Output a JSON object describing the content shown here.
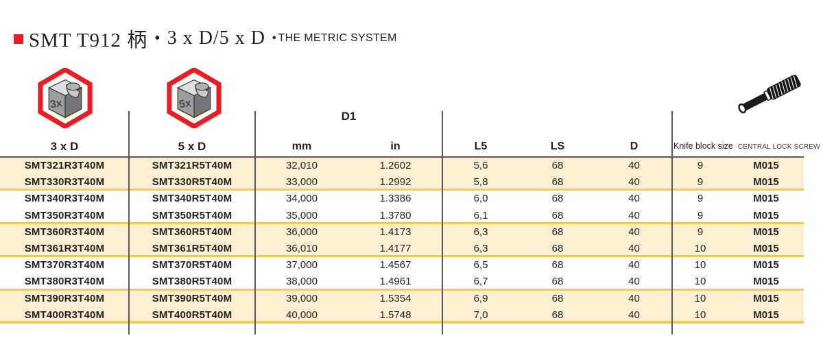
{
  "title": {
    "product": "SMT T912 柄",
    "separator_bullet": "•",
    "variant": "3 x D/5 x D",
    "system_bullet": "•",
    "system": "THE METRIC SYSTEM"
  },
  "columns": {
    "c3xd": "3 x D",
    "c5xd": "5 x D",
    "d1": "D1",
    "mm": "mm",
    "in": "in",
    "l5": "L5",
    "ls": "LS",
    "d": "D",
    "knife_block_size": "Knife block size",
    "central_lock_screw": "CENTRAL LOCK SCREW"
  },
  "icons": {
    "hex_3x_label": "3x",
    "hex_5x_label": "5x"
  },
  "colors": {
    "accent_red": "#EC1C24",
    "row_highlight": "#FAEFD3",
    "separator_gold": "#F3CB52",
    "grid_line": "#58595B",
    "text": "#231F20"
  },
  "table": {
    "col_keys": [
      "code-3xd",
      "code-5xd",
      "d1-mm",
      "d1-in",
      "l5",
      "ls",
      "d",
      "knife-block-size",
      "central-lock-screw"
    ],
    "rows": [
      [
        "SMT321R3T40M",
        "SMT321R5T40M",
        "32,010",
        "1.2602",
        "5,6",
        "68",
        "40",
        "9",
        "M015"
      ],
      [
        "SMT330R3T40M",
        "SMT330R5T40M",
        "33,000",
        "1.2992",
        "5,8",
        "68",
        "40",
        "9",
        "M015"
      ],
      [
        "SMT340R3T40M",
        "SMT340R5T40M",
        "34,000",
        "1.3386",
        "6,0",
        "68",
        "40",
        "9",
        "M015"
      ],
      [
        "SMT350R3T40M",
        "SMT350R5T40M",
        "35,000",
        "1.3780",
        "6,1",
        "68",
        "40",
        "9",
        "M015"
      ],
      [
        "SMT360R3T40M",
        "SMT360R5T40M",
        "36,000",
        "1.4173",
        "6,3",
        "68",
        "40",
        "9",
        "M015"
      ],
      [
        "SMT361R3T40M",
        "SMT361R5T40M",
        "36,010",
        "1.4177",
        "6,3",
        "68",
        "40",
        "10",
        "M015"
      ],
      [
        "SMT370R3T40M",
        "SMT370R5T40M",
        "37,000",
        "1.4567",
        "6,5",
        "68",
        "40",
        "10",
        "M015"
      ],
      [
        "SMT380R3T40M",
        "SMT380R5T40M",
        "38,000",
        "1.4961",
        "6,7",
        "68",
        "40",
        "10",
        "M015"
      ],
      [
        "SMT390R3T40M",
        "SMT390R5T40M",
        "39,000",
        "1.5354",
        "6,9",
        "68",
        "40",
        "10",
        "M015"
      ],
      [
        "SMT400R3T40M",
        "SMT400R5T40M",
        "40,000",
        "1.5748",
        "7,0",
        "68",
        "40",
        "10",
        "M015"
      ]
    ],
    "highlighted_rows": [
      0,
      1,
      4,
      5,
      8,
      9
    ],
    "pair_end_rows": [
      1,
      3,
      5,
      7
    ]
  }
}
